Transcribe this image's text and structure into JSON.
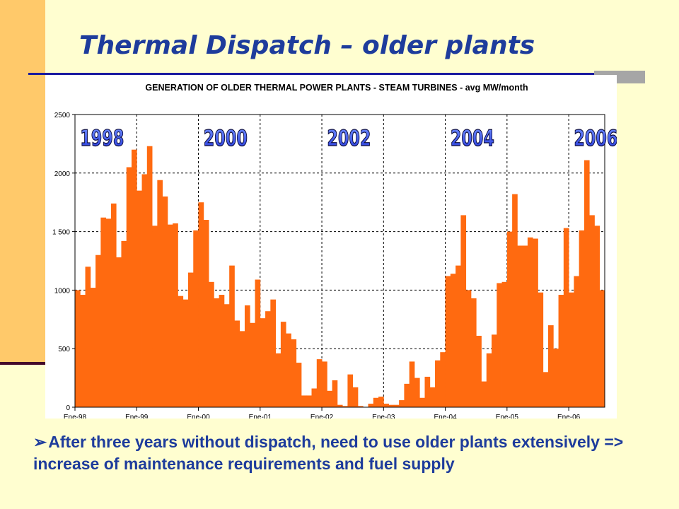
{
  "slide": {
    "title": "Thermal Dispatch – older plants",
    "bullet_marker": "➢",
    "bullet_text": "After three years without dispatch, need to use older plants extensively => increase of maintenance requirements and fuel supply"
  },
  "colors": {
    "background": "#fffed0",
    "left_bar": "#ffc96a",
    "title": "#1e3c9c",
    "bars": "#ff6a10",
    "year_label_fill": "#3f5fff"
  },
  "chart_data": {
    "type": "bar",
    "title": "GENERATION OF OLDER THERMAL POWER PLANTS - STEAM TURBINES - avg MW/month",
    "xlabel": "",
    "ylabel": "",
    "ylim": [
      0,
      2500
    ],
    "yticks": [
      0,
      500,
      1000,
      1500,
      2000,
      2500
    ],
    "yticklabels": [
      "0",
      "500",
      "1000",
      "1 500",
      "2000",
      "2500"
    ],
    "xticklabels": [
      "Ene-98",
      "Ene-99",
      "Ene-00",
      "Ene-01",
      "Ene-02",
      "Ene-03",
      "Ene-04",
      "Ene-05",
      "Ene-06"
    ],
    "grid": true,
    "year_annotations": [
      "1998",
      "2000",
      "2002",
      "2004",
      "2006"
    ],
    "start_month": "Ene-98",
    "values": [
      1000,
      960,
      1200,
      1020,
      1300,
      1620,
      1610,
      1740,
      1280,
      1420,
      2050,
      2200,
      1850,
      1990,
      2230,
      1550,
      1940,
      1800,
      1560,
      1570,
      950,
      920,
      1150,
      1510,
      1750,
      1600,
      1070,
      930,
      960,
      880,
      1210,
      740,
      650,
      870,
      720,
      1090,
      760,
      820,
      920,
      460,
      730,
      630,
      580,
      380,
      100,
      100,
      160,
      410,
      390,
      140,
      230,
      20,
      10,
      280,
      170,
      10,
      0,
      30,
      80,
      90,
      30,
      20,
      20,
      60,
      200,
      390,
      250,
      80,
      260,
      170,
      400,
      470,
      1120,
      1140,
      1210,
      1640,
      1000,
      930,
      610,
      220,
      460,
      620,
      1060,
      1070,
      1500,
      1820,
      1380,
      1380,
      1450,
      1440,
      980,
      300,
      700,
      500,
      960,
      1530,
      980,
      1120,
      1510,
      2110,
      1640,
      1550,
      1000
    ]
  }
}
